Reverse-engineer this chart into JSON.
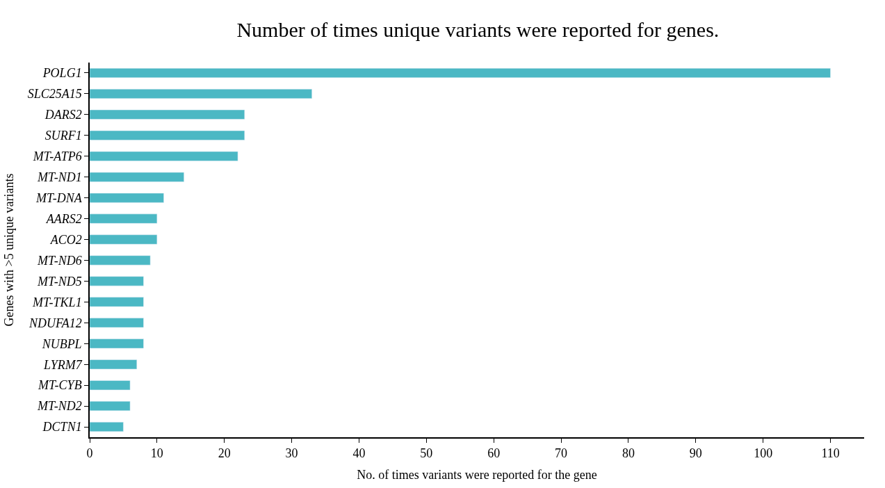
{
  "chart_data": {
    "type": "bar",
    "orientation": "horizontal",
    "title": "Number of times unique variants were reported for genes.",
    "xlabel": "No. of times variants were reported for the gene",
    "ylabel": "Genes with >5 unique variants",
    "categories": [
      "POLG1",
      "SLC25A15",
      "DARS2",
      "SURF1",
      "MT-ATP6",
      "MT-ND1",
      "MT-DNA",
      "AARS2",
      "ACO2",
      "MT-ND6",
      "MT-ND5",
      "MT-TKL1",
      "NDUFA12",
      "NUBPL",
      "LYRM7",
      "MT-CYB",
      "MT-ND2",
      "DCTN1"
    ],
    "values": [
      110,
      33,
      23,
      23,
      22,
      14,
      11,
      10,
      10,
      9,
      8,
      8,
      8,
      8,
      7,
      6,
      6,
      5
    ],
    "color": "#4bb8c4",
    "xlim": [
      0,
      115
    ],
    "xticks": [
      0,
      10,
      20,
      30,
      40,
      50,
      60,
      70,
      80,
      90,
      100,
      110
    ]
  }
}
